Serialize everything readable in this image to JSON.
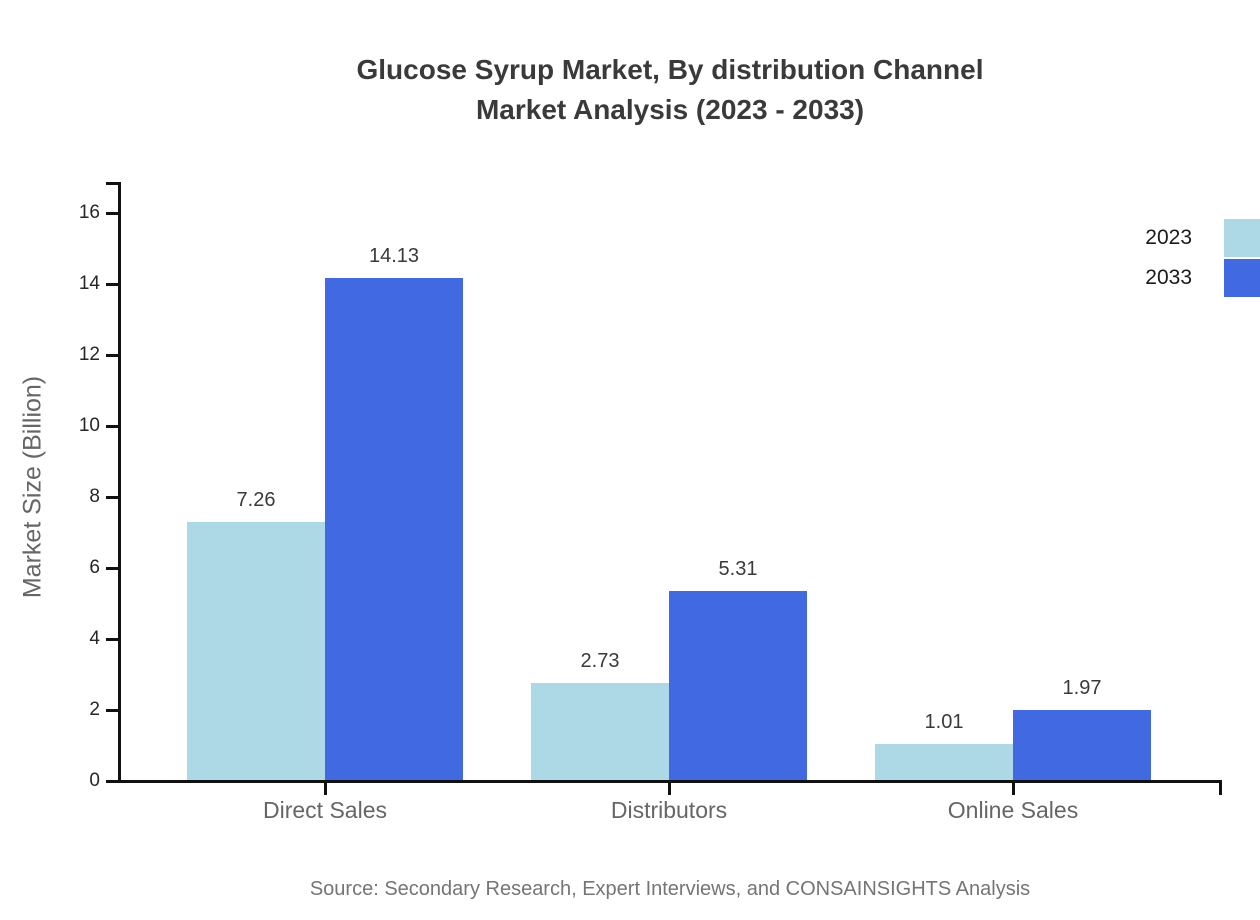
{
  "chart_data": {
    "type": "bar",
    "title": "Glucose Syrup Market, By distribution Channel",
    "subtitle": "Market Analysis (2023 - 2033)",
    "categories": [
      "Direct Sales",
      "Distributors",
      "Online Sales"
    ],
    "series": [
      {
        "name": "2023",
        "color": "#ADD8E6",
        "values": [
          7.26,
          2.73,
          1.01
        ]
      },
      {
        "name": "2033",
        "color": "#4169E1",
        "values": [
          14.13,
          5.31,
          1.97
        ]
      }
    ],
    "value_labels": [
      "7.26",
      "14.13",
      "2.73",
      "5.31",
      "1.01",
      "1.97"
    ],
    "xlabel": "",
    "ylabel": "Market Size (Billion)",
    "ylim": [
      0,
      17
    ],
    "yticks": [
      0,
      2,
      4,
      6,
      8,
      10,
      12,
      14,
      16
    ],
    "grid": false,
    "legend_position": "top-right"
  },
  "source_note": "Source: Secondary Research, Expert Interviews, and CONSAINSIGHTS Analysis",
  "colors": {
    "series_2023": "#ADD8E6",
    "series_2033": "#4169E1",
    "axis": "#111111",
    "title_text": "#3a3a3a",
    "tick_label": "#262626",
    "category_label": "#666666",
    "value_label": "#3a3a3a",
    "source_text": "#757575",
    "background": "#ffffff"
  }
}
